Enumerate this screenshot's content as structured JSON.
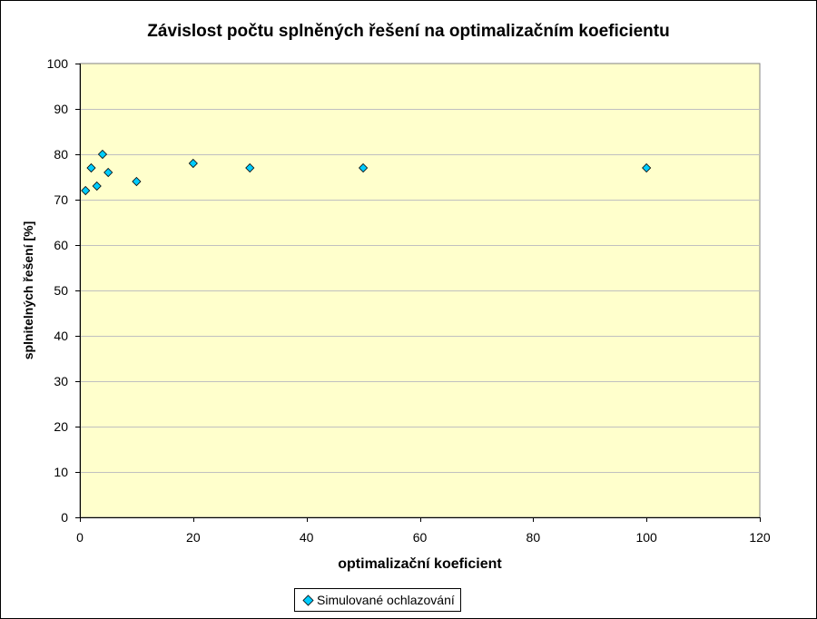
{
  "chart_data": {
    "type": "scatter",
    "title": "Závislost počtu splněných řešení na optimalizačním koeficientu",
    "xlabel": "optimalizační koeficient",
    "ylabel": "splnitelných řešení [%]",
    "xlim": [
      0,
      120
    ],
    "ylim": [
      0,
      100
    ],
    "x_ticks": [
      "0",
      "20",
      "40",
      "60",
      "80",
      "100",
      "120"
    ],
    "y_ticks": [
      "0",
      "10",
      "20",
      "30",
      "40",
      "50",
      "60",
      "70",
      "80",
      "90",
      "100"
    ],
    "grid": "horizontal",
    "plot_background": "#ffffcc",
    "gridline_color": "#c0c0c0",
    "legend_position": "bottom",
    "series": [
      {
        "name": "Simulované ochlazování",
        "marker": "diamond",
        "color": "#00ccff",
        "x": [
          1,
          2,
          3,
          4,
          5,
          10,
          20,
          30,
          50,
          100
        ],
        "y": [
          72,
          77,
          73,
          80,
          76,
          74,
          78,
          77,
          77,
          77
        ]
      }
    ]
  }
}
